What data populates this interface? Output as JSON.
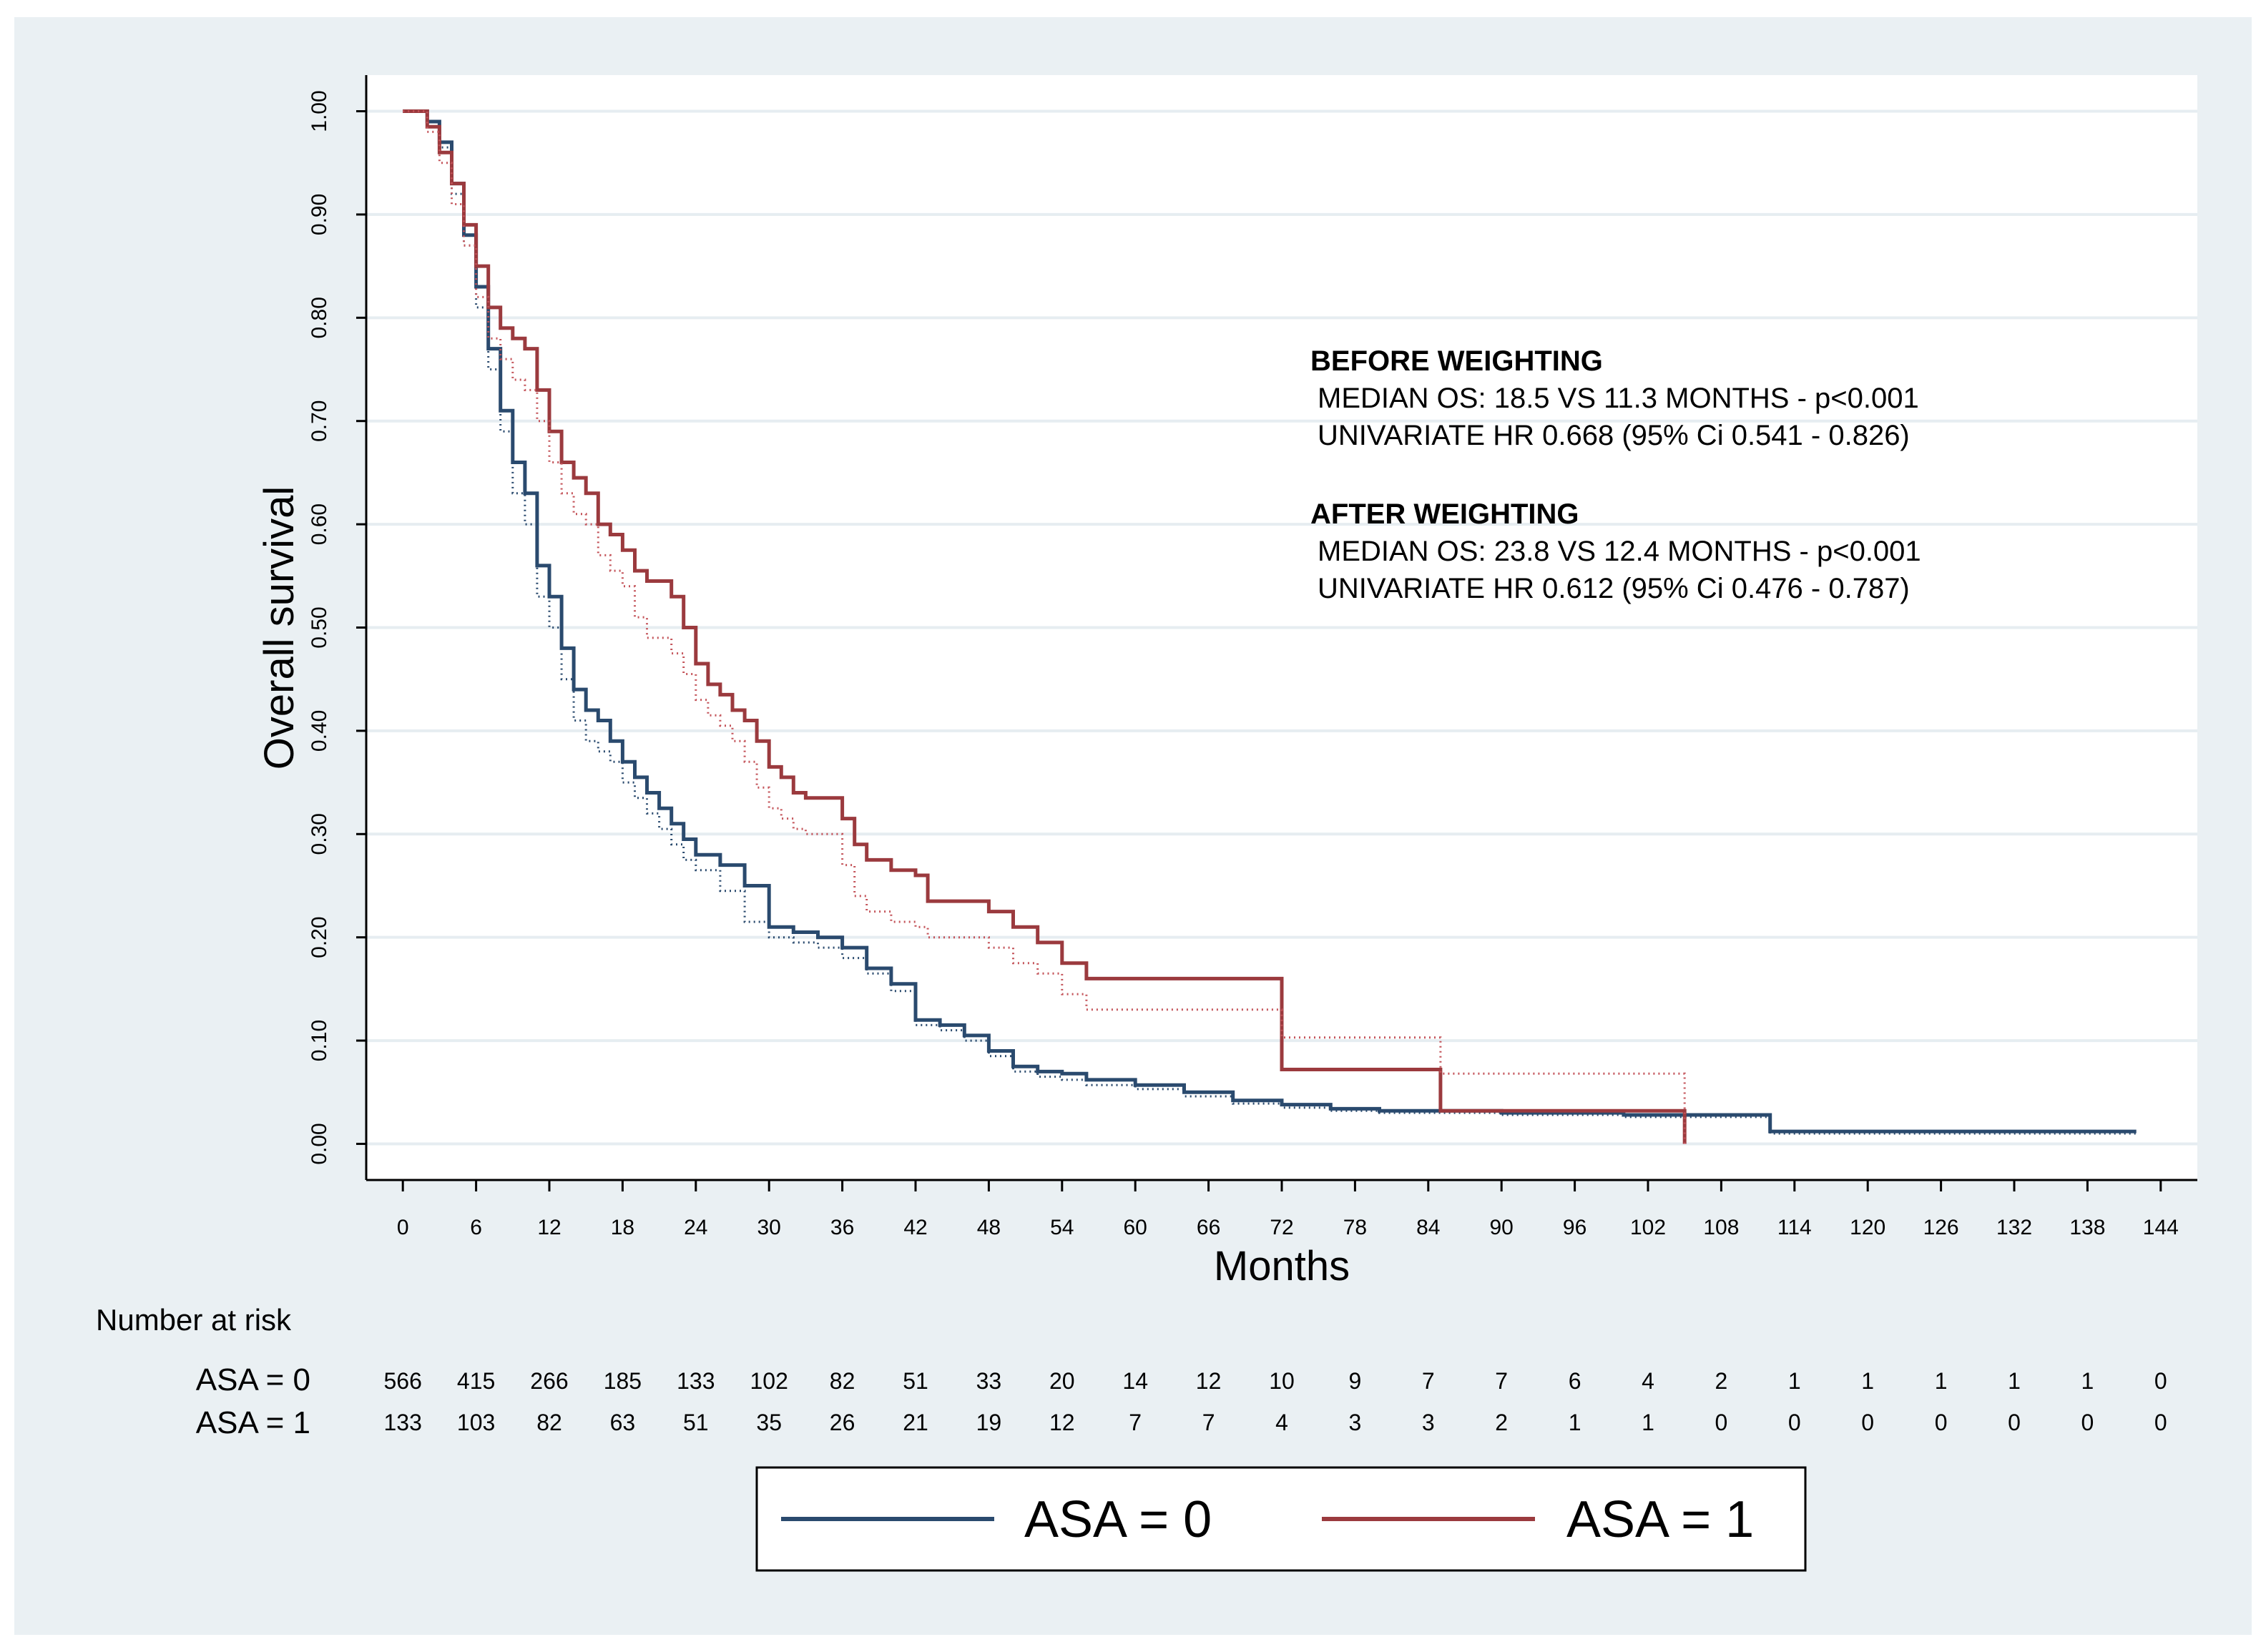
{
  "chart_data": {
    "type": "line",
    "title": "",
    "xlabel": "Months",
    "ylabel": "Overall survival",
    "xlim": [
      -3,
      147
    ],
    "ylim": [
      -0.035,
      1.035
    ],
    "x_ticks": [
      0,
      6,
      12,
      18,
      24,
      30,
      36,
      42,
      48,
      54,
      60,
      66,
      72,
      78,
      84,
      90,
      96,
      102,
      108,
      114,
      120,
      126,
      132,
      138,
      144
    ],
    "y_ticks": [
      0.0,
      0.1,
      0.2,
      0.3,
      0.4,
      0.5,
      0.6,
      0.7,
      0.8,
      0.9,
      1.0
    ],
    "y_tick_labels": [
      "0.00",
      "0.10",
      "0.20",
      "0.30",
      "0.40",
      "0.50",
      "0.60",
      "0.70",
      "0.80",
      "0.90",
      "1.00"
    ],
    "grid": true,
    "series": [
      {
        "name": "ASA = 0 (after weighting)",
        "group": "ASA = 0",
        "style": "solid",
        "color": "#2a4a6e",
        "points": [
          [
            0,
            1.0
          ],
          [
            1.5,
            1.0
          ],
          [
            2,
            0.99
          ],
          [
            3,
            0.97
          ],
          [
            4,
            0.93
          ],
          [
            5,
            0.88
          ],
          [
            6,
            0.83
          ],
          [
            7,
            0.77
          ],
          [
            8,
            0.71
          ],
          [
            9,
            0.66
          ],
          [
            10,
            0.63
          ],
          [
            11,
            0.56
          ],
          [
            12,
            0.53
          ],
          [
            13,
            0.48
          ],
          [
            14,
            0.44
          ],
          [
            15,
            0.42
          ],
          [
            16,
            0.41
          ],
          [
            17,
            0.39
          ],
          [
            18,
            0.37
          ],
          [
            19,
            0.355
          ],
          [
            20,
            0.34
          ],
          [
            21,
            0.325
          ],
          [
            22,
            0.31
          ],
          [
            23,
            0.295
          ],
          [
            24,
            0.28
          ],
          [
            26,
            0.27
          ],
          [
            28,
            0.25
          ],
          [
            30,
            0.21
          ],
          [
            32,
            0.205
          ],
          [
            34,
            0.2
          ],
          [
            36,
            0.19
          ],
          [
            38,
            0.17
          ],
          [
            40,
            0.155
          ],
          [
            42,
            0.12
          ],
          [
            44,
            0.115
          ],
          [
            46,
            0.105
          ],
          [
            48,
            0.09
          ],
          [
            50,
            0.075
          ],
          [
            52,
            0.07
          ],
          [
            54,
            0.068
          ],
          [
            56,
            0.062
          ],
          [
            60,
            0.057
          ],
          [
            64,
            0.05
          ],
          [
            68,
            0.042
          ],
          [
            72,
            0.038
          ],
          [
            76,
            0.034
          ],
          [
            80,
            0.032
          ],
          [
            90,
            0.03
          ],
          [
            100,
            0.028
          ],
          [
            104,
            0.028
          ],
          [
            112,
            0.028
          ],
          [
            112,
            0.012
          ],
          [
            142,
            0.012
          ]
        ]
      },
      {
        "name": "ASA = 0 (before weighting)",
        "group": "ASA = 0",
        "style": "dotted",
        "color": "#2a4a6e",
        "points": [
          [
            0,
            1.0
          ],
          [
            1.5,
            1.0
          ],
          [
            2,
            0.99
          ],
          [
            3,
            0.965
          ],
          [
            4,
            0.92
          ],
          [
            5,
            0.87
          ],
          [
            6,
            0.81
          ],
          [
            7,
            0.75
          ],
          [
            8,
            0.69
          ],
          [
            9,
            0.63
          ],
          [
            10,
            0.6
          ],
          [
            11,
            0.53
          ],
          [
            12,
            0.5
          ],
          [
            13,
            0.45
          ],
          [
            14,
            0.41
          ],
          [
            15,
            0.39
          ],
          [
            16,
            0.38
          ],
          [
            17,
            0.37
          ],
          [
            18,
            0.35
          ],
          [
            19,
            0.335
          ],
          [
            20,
            0.32
          ],
          [
            21,
            0.305
          ],
          [
            22,
            0.29
          ],
          [
            23,
            0.275
          ],
          [
            24,
            0.265
          ],
          [
            26,
            0.245
          ],
          [
            28,
            0.215
          ],
          [
            30,
            0.2
          ],
          [
            32,
            0.195
          ],
          [
            34,
            0.19
          ],
          [
            36,
            0.18
          ],
          [
            38,
            0.165
          ],
          [
            40,
            0.148
          ],
          [
            42,
            0.115
          ],
          [
            44,
            0.11
          ],
          [
            46,
            0.1
          ],
          [
            48,
            0.085
          ],
          [
            50,
            0.07
          ],
          [
            52,
            0.065
          ],
          [
            54,
            0.062
          ],
          [
            56,
            0.057
          ],
          [
            60,
            0.053
          ],
          [
            64,
            0.046
          ],
          [
            68,
            0.039
          ],
          [
            72,
            0.035
          ],
          [
            76,
            0.032
          ],
          [
            80,
            0.03
          ],
          [
            90,
            0.028
          ],
          [
            100,
            0.026
          ],
          [
            104,
            0.026
          ],
          [
            112,
            0.026
          ],
          [
            112,
            0.01
          ],
          [
            142,
            0.01
          ]
        ]
      },
      {
        "name": "ASA = 1 (after weighting)",
        "group": "ASA = 1",
        "style": "solid",
        "color": "#9b3a3e",
        "points": [
          [
            0,
            1.0
          ],
          [
            1.5,
            1.0
          ],
          [
            2,
            0.985
          ],
          [
            3,
            0.96
          ],
          [
            4,
            0.93
          ],
          [
            5,
            0.89
          ],
          [
            6,
            0.85
          ],
          [
            7,
            0.81
          ],
          [
            8,
            0.79
          ],
          [
            9,
            0.78
          ],
          [
            10,
            0.77
          ],
          [
            11,
            0.73
          ],
          [
            12,
            0.69
          ],
          [
            13,
            0.66
          ],
          [
            14,
            0.645
          ],
          [
            15,
            0.63
          ],
          [
            16,
            0.6
          ],
          [
            17,
            0.59
          ],
          [
            18,
            0.575
          ],
          [
            19,
            0.555
          ],
          [
            20,
            0.545
          ],
          [
            21,
            0.545
          ],
          [
            22,
            0.53
          ],
          [
            23,
            0.5
          ],
          [
            24,
            0.465
          ],
          [
            25,
            0.445
          ],
          [
            26,
            0.435
          ],
          [
            27,
            0.42
          ],
          [
            28,
            0.41
          ],
          [
            29,
            0.39
          ],
          [
            30,
            0.365
          ],
          [
            31,
            0.355
          ],
          [
            32,
            0.34
          ],
          [
            33,
            0.335
          ],
          [
            35,
            0.335
          ],
          [
            36,
            0.315
          ],
          [
            37,
            0.29
          ],
          [
            38,
            0.275
          ],
          [
            40,
            0.265
          ],
          [
            42,
            0.26
          ],
          [
            43,
            0.235
          ],
          [
            48,
            0.225
          ],
          [
            50,
            0.21
          ],
          [
            52,
            0.195
          ],
          [
            54,
            0.175
          ],
          [
            56,
            0.16
          ],
          [
            72,
            0.16
          ],
          [
            72,
            0.072
          ],
          [
            85,
            0.072
          ],
          [
            85,
            0.032
          ],
          [
            105,
            0.032
          ],
          [
            105,
            0.0
          ]
        ]
      },
      {
        "name": "ASA = 1 (before weighting)",
        "group": "ASA = 1",
        "style": "dotted",
        "color": "#c4545a",
        "points": [
          [
            0,
            1.0
          ],
          [
            1.5,
            1.0
          ],
          [
            2,
            0.98
          ],
          [
            3,
            0.95
          ],
          [
            4,
            0.91
          ],
          [
            5,
            0.87
          ],
          [
            6,
            0.82
          ],
          [
            7,
            0.78
          ],
          [
            8,
            0.76
          ],
          [
            9,
            0.74
          ],
          [
            10,
            0.73
          ],
          [
            11,
            0.7
          ],
          [
            12,
            0.66
          ],
          [
            13,
            0.63
          ],
          [
            14,
            0.61
          ],
          [
            15,
            0.6
          ],
          [
            16,
            0.57
          ],
          [
            17,
            0.555
          ],
          [
            18,
            0.54
          ],
          [
            19,
            0.51
          ],
          [
            20,
            0.49
          ],
          [
            21,
            0.49
          ],
          [
            22,
            0.475
          ],
          [
            23,
            0.455
          ],
          [
            24,
            0.43
          ],
          [
            25,
            0.415
          ],
          [
            26,
            0.405
          ],
          [
            27,
            0.39
          ],
          [
            28,
            0.37
          ],
          [
            29,
            0.345
          ],
          [
            30,
            0.325
          ],
          [
            31,
            0.315
          ],
          [
            32,
            0.305
          ],
          [
            33,
            0.3
          ],
          [
            35,
            0.3
          ],
          [
            36,
            0.27
          ],
          [
            37,
            0.24
          ],
          [
            38,
            0.225
          ],
          [
            40,
            0.215
          ],
          [
            42,
            0.21
          ],
          [
            43,
            0.2
          ],
          [
            48,
            0.19
          ],
          [
            50,
            0.175
          ],
          [
            52,
            0.165
          ],
          [
            54,
            0.145
          ],
          [
            56,
            0.13
          ],
          [
            72,
            0.13
          ],
          [
            72,
            0.103
          ],
          [
            84,
            0.103
          ],
          [
            85,
            0.068
          ],
          [
            105,
            0.068
          ],
          [
            105,
            0.0
          ]
        ]
      }
    ],
    "annotations": [
      {
        "heading": "BEFORE WEIGHTING",
        "lines": [
          "MEDIAN OS: 18.5 VS 11.3 MONTHS - p<0.001",
          "UNIVARIATE HR 0.668 (95% Ci 0.541 - 0.826)"
        ]
      },
      {
        "heading": "AFTER WEIGHTING",
        "lines": [
          "MEDIAN OS: 23.8 VS 12.4 MONTHS - p<0.001",
          "UNIVARIATE HR 0.612 (95% Ci 0.476 - 0.787)"
        ]
      }
    ],
    "risk_table": {
      "title": "Number at risk",
      "rows": [
        {
          "label": "ASA = 0",
          "values": [
            566,
            415,
            266,
            185,
            133,
            102,
            82,
            51,
            33,
            20,
            14,
            12,
            10,
            9,
            7,
            7,
            6,
            4,
            2,
            1,
            1,
            1,
            1,
            1,
            0
          ]
        },
        {
          "label": "ASA = 1",
          "values": [
            133,
            103,
            82,
            63,
            51,
            35,
            26,
            21,
            19,
            12,
            7,
            7,
            4,
            3,
            3,
            2,
            1,
            1,
            0,
            0,
            0,
            0,
            0,
            0,
            0
          ]
        }
      ]
    },
    "legend": {
      "position": "bottom-center",
      "entries": [
        {
          "label": "ASA = 0",
          "color": "#2a4a6e"
        },
        {
          "label": "ASA = 1",
          "color": "#9b3a3e"
        }
      ]
    }
  }
}
